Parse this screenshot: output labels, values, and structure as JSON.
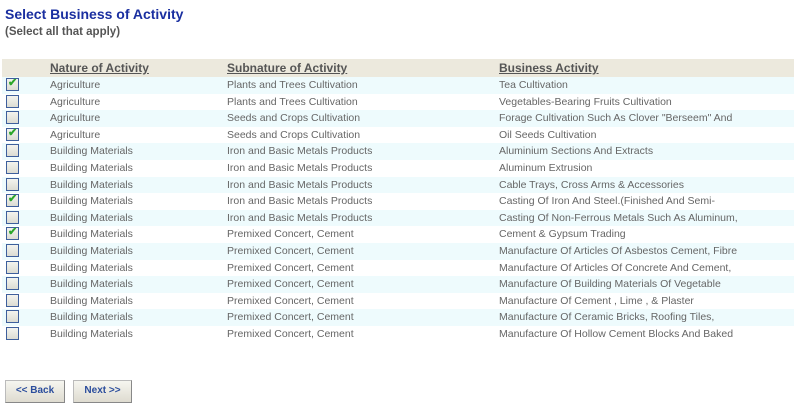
{
  "title": "Select Business of Activity",
  "subtitle": "(Select all that apply)",
  "headers": {
    "nature": "Nature of Activity",
    "subnature": "Subnature of Activity",
    "business": "Business Activity"
  },
  "rows": [
    {
      "checked": true,
      "nature": "Agriculture",
      "subnature": "Plants and Trees Cultivation",
      "business": "Tea Cultivation"
    },
    {
      "checked": false,
      "nature": "Agriculture",
      "subnature": "Plants and Trees Cultivation",
      "business": "Vegetables-Bearing Fruits Cultivation"
    },
    {
      "checked": false,
      "nature": "Agriculture",
      "subnature": "Seeds and Crops Cultivation",
      "business": "Forage Cultivation Such As Clover \"Berseem\" And"
    },
    {
      "checked": true,
      "nature": "Agriculture",
      "subnature": "Seeds and Crops Cultivation",
      "business": "Oil Seeds Cultivation"
    },
    {
      "checked": false,
      "nature": "Building Materials",
      "subnature": "Iron and Basic Metals Products",
      "business": "Aluminium Sections And Extracts"
    },
    {
      "checked": false,
      "nature": "Building Materials",
      "subnature": "Iron and Basic Metals Products",
      "business": "Aluminum Extrusion"
    },
    {
      "checked": false,
      "nature": "Building Materials",
      "subnature": "Iron and Basic Metals Products",
      "business": "Cable Trays, Cross Arms & Accessories"
    },
    {
      "checked": true,
      "nature": "Building Materials",
      "subnature": "Iron and Basic Metals Products",
      "business": "Casting Of Iron And Steel.(Finished And Semi-"
    },
    {
      "checked": false,
      "nature": "Building Materials",
      "subnature": "Iron and Basic Metals Products",
      "business": "Casting Of Non-Ferrous Metals Such As Aluminum,"
    },
    {
      "checked": true,
      "nature": "Building Materials",
      "subnature": "Premixed Concert, Cement",
      "business": "Cement & Gypsum Trading"
    },
    {
      "checked": false,
      "nature": "Building Materials",
      "subnature": "Premixed Concert, Cement",
      "business": "Manufacture Of Articles Of Asbestos Cement, Fibre"
    },
    {
      "checked": false,
      "nature": "Building Materials",
      "subnature": "Premixed Concert, Cement",
      "business": "Manufacture Of Articles Of Concrete And Cement,"
    },
    {
      "checked": false,
      "nature": "Building Materials",
      "subnature": "Premixed Concert, Cement",
      "business": "Manufacture Of Building Materials Of Vegetable"
    },
    {
      "checked": false,
      "nature": "Building Materials",
      "subnature": "Premixed Concert, Cement",
      "business": "Manufacture Of Cement , Lime , & Plaster"
    },
    {
      "checked": false,
      "nature": "Building Materials",
      "subnature": "Premixed Concert, Cement",
      "business": "Manufacture Of Ceramic Bricks, Roofing Tiles,"
    },
    {
      "checked": false,
      "nature": "Building Materials",
      "subnature": "Premixed Concert, Cement",
      "business": "Manufacture Of Hollow Cement Blocks And Baked"
    }
  ],
  "buttons": {
    "back": "<< Back",
    "next": "Next >>"
  }
}
